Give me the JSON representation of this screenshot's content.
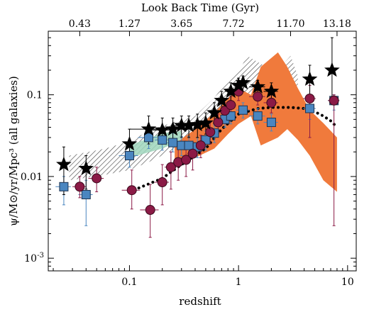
{
  "chart_data": {
    "type": "scatter",
    "title": "",
    "xlabel": "redshift",
    "ylabel": "ψ/M⊙/yr/Mpc³   (all galaxies)",
    "top_axis_label": "Look Back Time (Gyr)",
    "xscale": "log",
    "yscale": "log",
    "xlim": [
      0.018,
      12
    ],
    "ylim": [
      0.0007,
      0.6
    ],
    "x_ticks": [
      {
        "value": 0.1,
        "label": "0.1"
      },
      {
        "value": 1,
        "label": "1"
      },
      {
        "value": 10,
        "label": "10"
      }
    ],
    "y_ticks": [
      {
        "value": 0.001,
        "label": "10",
        "exp": "-3"
      },
      {
        "value": 0.01,
        "label": "0.01",
        "exp": ""
      },
      {
        "value": 0.1,
        "label": "0.1",
        "exp": ""
      }
    ],
    "top_ticks": [
      {
        "value": 0.035,
        "label": "0.43"
      },
      {
        "value": 0.1,
        "label": "1.27"
      },
      {
        "value": 0.3,
        "label": "3.65"
      },
      {
        "value": 0.9,
        "label": "7.72"
      },
      {
        "value": 3.0,
        "label": "11.70"
      },
      {
        "value": 8.0,
        "label": "13.18"
      }
    ],
    "grid": false,
    "colors": {
      "stars": "#000000",
      "circles": "#8b1a46",
      "squares": "#4a86c0",
      "band_orange": "#f07a3c",
      "band_hatch": "#555555",
      "band_green": "#9fd6bc"
    },
    "series": [
      {
        "marker": "star",
        "points": [
          {
            "x": 0.025,
            "y": 0.014,
            "ylo": 0.006,
            "yhi": 0.023,
            "xerr": 0
          },
          {
            "x": 0.04,
            "y": 0.0125,
            "ylo": 0.007,
            "yhi": 0.018,
            "xerr": 0
          },
          {
            "x": 0.1,
            "y": 0.025,
            "ylo": 0.017,
            "yhi": 0.038,
            "xerr": 0
          },
          {
            "x": 0.15,
            "y": 0.038,
            "ylo": 0.025,
            "yhi": 0.055,
            "xerr": 0.05
          },
          {
            "x": 0.2,
            "y": 0.037,
            "ylo": 0.025,
            "yhi": 0.052,
            "xerr": 0.05
          },
          {
            "x": 0.25,
            "y": 0.038,
            "ylo": 0.026,
            "yhi": 0.052,
            "xerr": 0.05
          },
          {
            "x": 0.3,
            "y": 0.042,
            "ylo": 0.03,
            "yhi": 0.055,
            "xerr": 0.05
          },
          {
            "x": 0.35,
            "y": 0.042,
            "ylo": 0.03,
            "yhi": 0.055,
            "xerr": 0.05
          },
          {
            "x": 0.42,
            "y": 0.043,
            "ylo": 0.03,
            "yhi": 0.058,
            "xerr": 0.05
          },
          {
            "x": 0.5,
            "y": 0.045,
            "ylo": 0.033,
            "yhi": 0.06,
            "xerr": 0.05
          },
          {
            "x": 0.6,
            "y": 0.06,
            "ylo": 0.045,
            "yhi": 0.08,
            "xerr": 0.05
          },
          {
            "x": 0.7,
            "y": 0.085,
            "ylo": 0.065,
            "yhi": 0.11,
            "xerr": 0.05
          },
          {
            "x": 0.85,
            "y": 0.11,
            "ylo": 0.085,
            "yhi": 0.14,
            "xerr": 0.1
          },
          {
            "x": 1.0,
            "y": 0.13,
            "ylo": 0.1,
            "yhi": 0.16,
            "xerr": 0.1
          },
          {
            "x": 1.1,
            "y": 0.14,
            "ylo": 0.11,
            "yhi": 0.17,
            "xerr": 0.1
          },
          {
            "x": 1.5,
            "y": 0.125,
            "ylo": 0.1,
            "yhi": 0.15,
            "xerr": 0.25
          },
          {
            "x": 2.0,
            "y": 0.11,
            "ylo": 0.085,
            "yhi": 0.14,
            "xerr": 0.3
          },
          {
            "x": 4.5,
            "y": 0.155,
            "ylo": 0.1,
            "yhi": 0.23,
            "xerr": 0
          },
          {
            "x": 7.2,
            "y": 0.2,
            "ylo": 0.08,
            "yhi": 0.5,
            "xerr": 0
          }
        ]
      },
      {
        "marker": "circle",
        "points": [
          {
            "x": 0.035,
            "y": 0.0075,
            "ylo": 0.0055,
            "yhi": 0.01,
            "xerr": 0.005
          },
          {
            "x": 0.05,
            "y": 0.0095,
            "ylo": 0.0065,
            "yhi": 0.013,
            "xerr": 0.008
          },
          {
            "x": 0.105,
            "y": 0.0068,
            "ylo": 0.004,
            "yhi": 0.012,
            "xerr": 0.02
          },
          {
            "x": 0.155,
            "y": 0.0039,
            "ylo": 0.0018,
            "yhi": 0.008,
            "xerr": 0.03
          },
          {
            "x": 0.2,
            "y": 0.0085,
            "ylo": 0.0045,
            "yhi": 0.014,
            "xerr": 0.03
          },
          {
            "x": 0.24,
            "y": 0.013,
            "ylo": 0.007,
            "yhi": 0.02,
            "xerr": 0.03
          },
          {
            "x": 0.28,
            "y": 0.015,
            "ylo": 0.009,
            "yhi": 0.022,
            "xerr": 0.03
          },
          {
            "x": 0.33,
            "y": 0.016,
            "ylo": 0.01,
            "yhi": 0.023,
            "xerr": 0.03
          },
          {
            "x": 0.38,
            "y": 0.019,
            "ylo": 0.012,
            "yhi": 0.026,
            "xerr": 0.04
          },
          {
            "x": 0.45,
            "y": 0.024,
            "ylo": 0.017,
            "yhi": 0.032,
            "xerr": 0.04
          },
          {
            "x": 0.55,
            "y": 0.035,
            "ylo": 0.025,
            "yhi": 0.046,
            "xerr": 0.05
          },
          {
            "x": 0.65,
            "y": 0.046,
            "ylo": 0.034,
            "yhi": 0.058,
            "xerr": 0.05
          },
          {
            "x": 0.75,
            "y": 0.064,
            "ylo": 0.048,
            "yhi": 0.08,
            "xerr": 0.05
          },
          {
            "x": 0.85,
            "y": 0.075,
            "ylo": 0.058,
            "yhi": 0.095,
            "xerr": 0.1
          },
          {
            "x": 1.0,
            "y": 0.11,
            "ylo": 0.085,
            "yhi": 0.13,
            "xerr": 0.1
          },
          {
            "x": 1.5,
            "y": 0.095,
            "ylo": 0.075,
            "yhi": 0.12,
            "xerr": 0.25
          },
          {
            "x": 2.0,
            "y": 0.08,
            "ylo": 0.06,
            "yhi": 0.1,
            "xerr": 0.3
          },
          {
            "x": 4.5,
            "y": 0.09,
            "ylo": 0.03,
            "yhi": 0.13,
            "xerr": 0.6
          },
          {
            "x": 7.5,
            "y": 0.085,
            "ylo": 0.0025,
            "yhi": 0.1,
            "xerr": 0.9
          }
        ]
      },
      {
        "marker": "square",
        "points": [
          {
            "x": 0.025,
            "y": 0.0075,
            "ylo": 0.0045,
            "yhi": 0.01,
            "xerr": 0.004
          },
          {
            "x": 0.04,
            "y": 0.006,
            "ylo": 0.0025,
            "yhi": 0.009,
            "xerr": 0.006
          },
          {
            "x": 0.1,
            "y": 0.018,
            "ylo": 0.013,
            "yhi": 0.024,
            "xerr": 0.02
          },
          {
            "x": 0.15,
            "y": 0.03,
            "ylo": 0.022,
            "yhi": 0.04,
            "xerr": 0.03
          },
          {
            "x": 0.2,
            "y": 0.028,
            "ylo": 0.021,
            "yhi": 0.036,
            "xerr": 0.03
          },
          {
            "x": 0.25,
            "y": 0.026,
            "ylo": 0.02,
            "yhi": 0.034,
            "xerr": 0.03
          },
          {
            "x": 0.3,
            "y": 0.024,
            "ylo": 0.018,
            "yhi": 0.031,
            "xerr": 0.03
          },
          {
            "x": 0.35,
            "y": 0.024,
            "ylo": 0.018,
            "yhi": 0.031,
            "xerr": 0.03
          },
          {
            "x": 0.42,
            "y": 0.023,
            "ylo": 0.017,
            "yhi": 0.03,
            "xerr": 0.03
          },
          {
            "x": 0.5,
            "y": 0.028,
            "ylo": 0.021,
            "yhi": 0.036,
            "xerr": 0.04
          },
          {
            "x": 0.6,
            "y": 0.034,
            "ylo": 0.026,
            "yhi": 0.043,
            "xerr": 0.05
          },
          {
            "x": 0.75,
            "y": 0.05,
            "ylo": 0.04,
            "yhi": 0.062,
            "xerr": 0.06
          },
          {
            "x": 0.85,
            "y": 0.055,
            "ylo": 0.044,
            "yhi": 0.068,
            "xerr": 0.1
          },
          {
            "x": 1.1,
            "y": 0.065,
            "ylo": 0.052,
            "yhi": 0.08,
            "xerr": 0.15
          },
          {
            "x": 1.5,
            "y": 0.055,
            "ylo": 0.044,
            "yhi": 0.068,
            "xerr": 0.25
          },
          {
            "x": 2.0,
            "y": 0.046,
            "ylo": 0.036,
            "yhi": 0.058,
            "xerr": 0.3
          },
          {
            "x": 4.5,
            "y": 0.068,
            "ylo": 0.05,
            "yhi": 0.085,
            "xerr": 0.6
          },
          {
            "x": 7.5,
            "y": 0.085,
            "ylo": 0.065,
            "yhi": 0.1,
            "xerr": 0.9
          }
        ]
      },
      {
        "marker": "dotted_line",
        "x": [
          0.1,
          0.2,
          0.3,
          0.5,
          0.7,
          1.0,
          1.5,
          2.0,
          3.0,
          4.0,
          5.0,
          6.0,
          7.0,
          8.0
        ],
        "y": [
          0.0065,
          0.0095,
          0.014,
          0.022,
          0.038,
          0.058,
          0.068,
          0.07,
          0.07,
          0.068,
          0.062,
          0.055,
          0.048,
          0.04
        ]
      }
    ],
    "bands": [
      {
        "style": "hatch",
        "upper": [
          [
            0.028,
            0.018
          ],
          [
            0.06,
            0.022
          ],
          [
            0.1,
            0.027
          ],
          [
            0.15,
            0.036
          ],
          [
            0.25,
            0.046
          ],
          [
            0.4,
            0.055
          ],
          [
            0.6,
            0.092
          ],
          [
            0.8,
            0.15
          ],
          [
            1.0,
            0.19
          ],
          [
            1.2,
            0.3
          ],
          [
            1.6,
            0.24
          ],
          [
            2.2,
            0.19
          ],
          [
            3.0,
            0.3
          ],
          [
            3.5,
            0.17
          ]
        ],
        "lower": [
          [
            3.5,
            0.09
          ],
          [
            3.0,
            0.11
          ],
          [
            2.2,
            0.075
          ],
          [
            1.6,
            0.085
          ],
          [
            1.2,
            0.09
          ],
          [
            1.0,
            0.085
          ],
          [
            0.8,
            0.055
          ],
          [
            0.6,
            0.04
          ],
          [
            0.4,
            0.031
          ],
          [
            0.25,
            0.021
          ],
          [
            0.15,
            0.015
          ],
          [
            0.1,
            0.012
          ],
          [
            0.06,
            0.0105
          ],
          [
            0.028,
            0.009
          ]
        ]
      },
      {
        "style": "green",
        "upper": [
          [
            0.1,
            0.024
          ],
          [
            0.2,
            0.034
          ],
          [
            0.3,
            0.036
          ]
        ],
        "lower": [
          [
            0.3,
            0.028
          ],
          [
            0.2,
            0.022
          ],
          [
            0.1,
            0.017
          ]
        ]
      },
      {
        "style": "orange",
        "upper": [
          [
            0.26,
            0.025
          ],
          [
            0.4,
            0.038
          ],
          [
            0.6,
            0.06
          ],
          [
            0.8,
            0.09
          ],
          [
            1.0,
            0.12
          ],
          [
            1.3,
            0.1
          ],
          [
            1.6,
            0.22
          ],
          [
            2.3,
            0.33
          ],
          [
            2.8,
            0.22
          ],
          [
            3.5,
            0.12
          ],
          [
            4.5,
            0.065
          ],
          [
            6.0,
            0.045
          ],
          [
            8.0,
            0.03
          ]
        ],
        "lower": [
          [
            8.0,
            0.0065
          ],
          [
            6.0,
            0.009
          ],
          [
            4.5,
            0.018
          ],
          [
            3.5,
            0.028
          ],
          [
            2.8,
            0.038
          ],
          [
            2.3,
            0.03
          ],
          [
            1.6,
            0.024
          ],
          [
            1.3,
            0.055
          ],
          [
            1.0,
            0.044
          ],
          [
            0.8,
            0.033
          ],
          [
            0.6,
            0.022
          ],
          [
            0.4,
            0.017
          ],
          [
            0.26,
            0.014
          ]
        ]
      }
    ]
  }
}
